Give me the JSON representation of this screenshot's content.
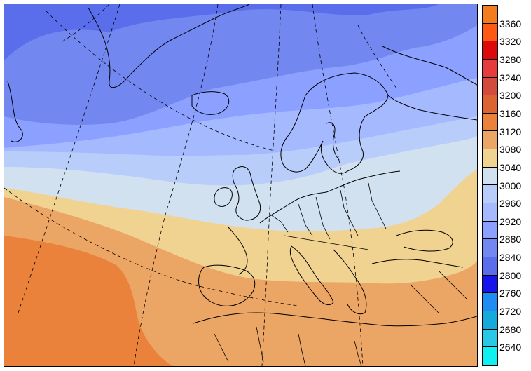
{
  "legend": {
    "labels": [
      "3360",
      "3320",
      "3280",
      "3240",
      "3200",
      "3160",
      "3120",
      "3080",
      "3040",
      "3000",
      "2960",
      "2920",
      "2880",
      "2840",
      "2800",
      "2760",
      "2720",
      "2680",
      "2640"
    ],
    "colors": [
      "#f57c1e",
      "#ff5a14",
      "#dc0a0a",
      "#e63c3c",
      "#d24b3c",
      "#dc6432",
      "#eb823c",
      "#eba564",
      "#f0d291",
      "#d2e1f0",
      "#b9cdfa",
      "#a5b9ff",
      "#8ca0ff",
      "#7387f0",
      "#5a6eeb",
      "#1414eb",
      "#1e8cf0",
      "#14aadc",
      "#28c8e6",
      "#0ff0f0"
    ]
  },
  "map": {
    "contour_colors": {
      "c2800": "#5a6eeb",
      "c2840": "#7387f0",
      "c2880": "#8ca0ff",
      "c2920": "#a5b9ff",
      "c2960": "#b9cdfa",
      "c3000": "#d2e1f0",
      "c3040": "#f0d291",
      "c3080": "#eba564",
      "c3120": "#eb823c"
    },
    "line_color": "#000000"
  }
}
